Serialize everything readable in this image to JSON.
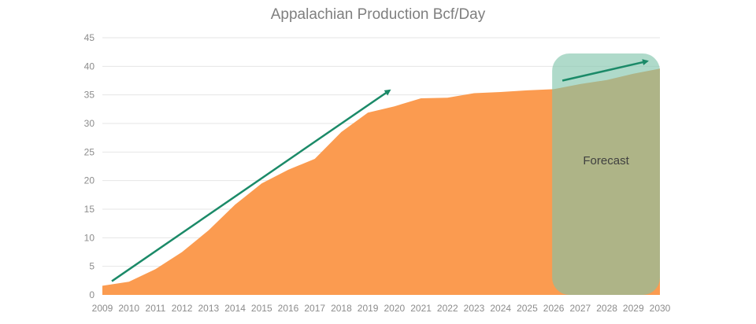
{
  "chart_data": {
    "type": "area",
    "title": "Appalachian Production Bcf/Day",
    "xlabel": "",
    "ylabel": "",
    "categories": [
      "2009",
      "2010",
      "2011",
      "2012",
      "2013",
      "2014",
      "2015",
      "2016",
      "2017",
      "2018",
      "2019",
      "2020",
      "2021",
      "2022",
      "2023",
      "2024",
      "2025",
      "2026",
      "2027",
      "2028",
      "2029",
      "2030"
    ],
    "values": [
      1.6,
      2.3,
      4.5,
      7.5,
      11.3,
      15.8,
      19.5,
      21.9,
      23.8,
      28.5,
      31.9,
      33.0,
      34.4,
      34.5,
      35.3,
      35.5,
      35.8,
      36.0,
      36.9,
      37.6,
      38.7,
      39.6
    ],
    "ylim": [
      0,
      45
    ],
    "yticks": [
      "0",
      "5",
      "10",
      "15",
      "20",
      "25",
      "30",
      "35",
      "40",
      "45"
    ],
    "grid": true,
    "legend": "none",
    "forecast": {
      "label": "Forecast",
      "from": "2026",
      "to": "2030"
    },
    "annotations": [
      {
        "type": "trend-arrow",
        "from": [
          "2009",
          2.4
        ],
        "to": [
          "2020",
          35.8
        ]
      },
      {
        "type": "trend-arrow",
        "from": [
          "2026",
          37.5
        ],
        "to": [
          "2030",
          40.9
        ]
      }
    ],
    "colors": {
      "area": "#fb9b50",
      "forecast_box": "#7ec4aa",
      "arrow": "#1b8a68",
      "grid": "#e6e6e6",
      "text": "#7f7f7f"
    }
  }
}
